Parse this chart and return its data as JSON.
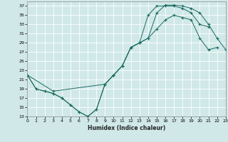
{
  "xlabel": "Humidex (Indice chaleur)",
  "xlim": [
    0,
    23
  ],
  "ylim": [
    13,
    38
  ],
  "yticks": [
    13,
    15,
    17,
    19,
    21,
    23,
    25,
    27,
    29,
    31,
    33,
    35,
    37
  ],
  "xticks": [
    0,
    1,
    2,
    3,
    4,
    5,
    6,
    7,
    8,
    9,
    10,
    11,
    12,
    13,
    14,
    15,
    16,
    17,
    18,
    19,
    20,
    21,
    22,
    23
  ],
  "bg_color": "#d0e8e8",
  "line_color": "#1a6b60",
  "grid_color": "#ffffff",
  "line1_x": [
    0,
    1,
    2,
    3,
    4,
    5,
    6,
    7,
    8,
    9,
    10,
    11,
    12,
    13,
    14,
    15,
    16,
    17,
    18,
    19,
    20,
    21,
    22
  ],
  "line1_y": [
    22,
    19,
    18.5,
    18,
    17,
    15.5,
    14,
    13,
    14.5,
    20,
    22,
    24,
    28,
    29,
    30,
    32,
    34,
    35,
    34.5,
    34,
    30,
    27.5,
    28
  ],
  "line2_x": [
    0,
    1,
    2,
    3,
    4,
    5,
    6,
    7,
    8,
    9,
    10,
    11,
    12,
    13,
    14,
    15,
    16,
    17,
    18,
    19,
    20,
    21
  ],
  "line2_y": [
    22,
    19,
    18.5,
    18,
    17,
    15.5,
    14,
    13,
    14.5,
    20,
    22,
    24,
    28,
    29,
    35,
    37,
    37,
    37,
    36.5,
    35.5,
    33,
    32.5
  ],
  "line3_x": [
    0,
    3,
    9,
    10,
    11,
    12,
    13,
    14,
    15,
    16,
    17,
    18,
    19,
    20,
    21,
    22,
    23
  ],
  "line3_y": [
    22,
    18.5,
    20,
    22,
    24,
    28,
    29,
    30,
    35.5,
    37.2,
    37.2,
    37,
    36.5,
    35.5,
    33,
    30,
    27.5
  ]
}
